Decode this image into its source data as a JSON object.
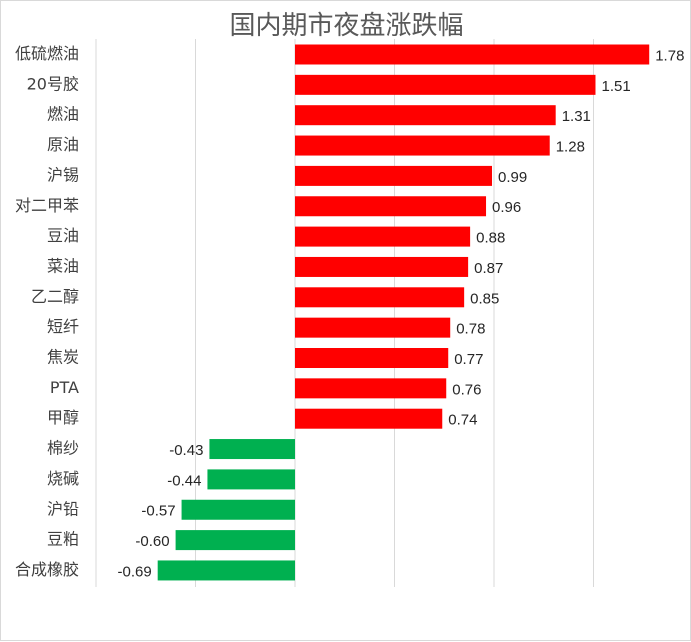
{
  "chart_data": {
    "type": "bar",
    "orientation": "horizontal",
    "title": "国内期市夜盘涨跌幅",
    "xlabel": "",
    "ylabel": "",
    "categories": [
      "低硫燃油",
      "20号胶",
      "燃油",
      "原油",
      "沪锡",
      "对二甲苯",
      "豆油",
      "菜油",
      "乙二醇",
      "短纤",
      "焦炭",
      "PTA",
      "甲醇",
      "棉纱",
      "烧碱",
      "沪铅",
      "豆粕",
      "合成橡胶"
    ],
    "values": [
      1.78,
      1.51,
      1.31,
      1.28,
      0.99,
      0.96,
      0.88,
      0.87,
      0.85,
      0.78,
      0.77,
      0.76,
      0.74,
      -0.43,
      -0.44,
      -0.57,
      -0.6,
      -0.69
    ],
    "data_labels": [
      "1.78",
      "1.51",
      "1.31",
      "1.28",
      "0.99",
      "0.96",
      "0.88",
      "0.87",
      "0.85",
      "0.78",
      "0.77",
      "0.76",
      "0.74",
      "-0.43",
      "-0.44",
      "-0.57",
      "-0.60",
      "-0.69"
    ],
    "xlim": [
      -1.0,
      2.0
    ],
    "grid": true,
    "legend": "none",
    "positive_color": "#ff0000",
    "negative_color": "#00b050"
  }
}
